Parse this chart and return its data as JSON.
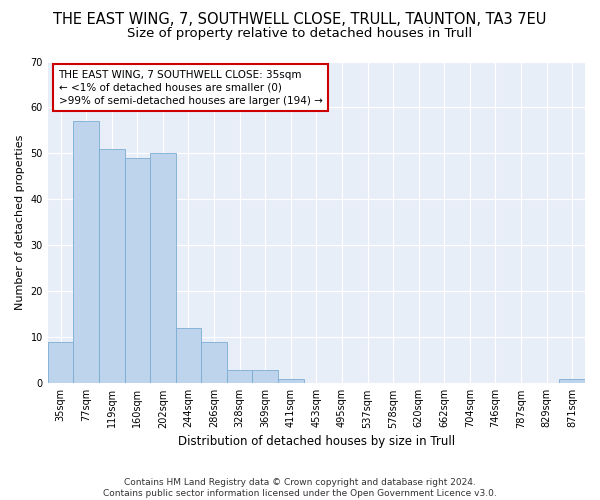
{
  "title": "THE EAST WING, 7, SOUTHWELL CLOSE, TRULL, TAUNTON, TA3 7EU",
  "subtitle": "Size of property relative to detached houses in Trull",
  "xlabel": "Distribution of detached houses by size in Trull",
  "ylabel": "Number of detached properties",
  "categories": [
    "35sqm",
    "77sqm",
    "119sqm",
    "160sqm",
    "202sqm",
    "244sqm",
    "286sqm",
    "328sqm",
    "369sqm",
    "411sqm",
    "453sqm",
    "495sqm",
    "537sqm",
    "578sqm",
    "620sqm",
    "662sqm",
    "704sqm",
    "746sqm",
    "787sqm",
    "829sqm",
    "871sqm"
  ],
  "values": [
    9,
    57,
    51,
    49,
    50,
    12,
    9,
    3,
    3,
    1,
    0,
    0,
    0,
    0,
    0,
    0,
    0,
    0,
    0,
    0,
    1
  ],
  "bar_color": "#bed3ec",
  "bar_edge_color": "#7aadd4",
  "annotation_box_text": "THE EAST WING, 7 SOUTHWELL CLOSE: 35sqm\n← <1% of detached houses are smaller (0)\n>99% of semi-detached houses are larger (194) →",
  "annotation_box_color": "#ffffff",
  "annotation_box_edge_color": "#cc0000",
  "ylim": [
    0,
    70
  ],
  "yticks": [
    0,
    10,
    20,
    30,
    40,
    50,
    60,
    70
  ],
  "fig_background_color": "#ffffff",
  "plot_background_color": "#e8eef8",
  "grid_color": "#ffffff",
  "footer_line1": "Contains HM Land Registry data © Crown copyright and database right 2024.",
  "footer_line2": "Contains public sector information licensed under the Open Government Licence v3.0.",
  "title_fontsize": 10.5,
  "subtitle_fontsize": 9.5,
  "ylabel_fontsize": 8,
  "xlabel_fontsize": 8.5,
  "tick_fontsize": 7,
  "annotation_fontsize": 7.5,
  "footer_fontsize": 6.5
}
